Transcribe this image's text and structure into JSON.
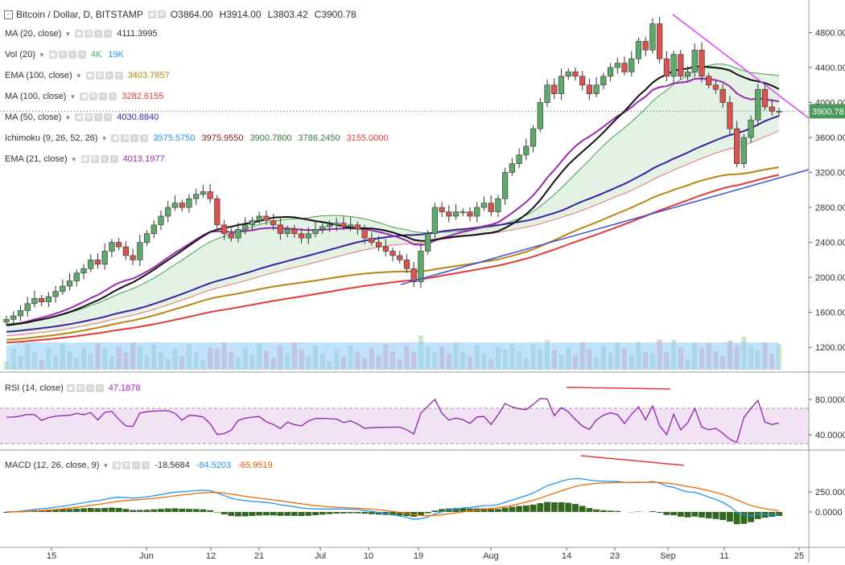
{
  "header": {
    "symbol": "Bitcoin / Dollar, D, BITSTAMP",
    "open": "O3864.00",
    "high": "H3914.00",
    "low": "L3803.42",
    "close": "C3900.78"
  },
  "indicators": [
    {
      "name": "MA (20, close)",
      "values": [
        {
          "v": "4111.3995",
          "color": "#333333"
        }
      ]
    },
    {
      "name": "Vol (20)",
      "values": [
        {
          "v": "4K",
          "color": "#4caf50"
        },
        {
          "v": "19K",
          "color": "#2196f3"
        }
      ]
    },
    {
      "name": "EMA (100, close)",
      "values": [
        {
          "v": "3403.7857",
          "color": "#b8860b"
        }
      ]
    },
    {
      "name": "MA (100, close)",
      "values": [
        {
          "v": "3282.6155",
          "color": "#e53935"
        }
      ]
    },
    {
      "name": "MA (50, close)",
      "values": [
        {
          "v": "4030.8840",
          "color": "#3f1f9f"
        }
      ]
    },
    {
      "name": "Ichimoku (9, 26, 52, 26)",
      "values": [
        {
          "v": "3575.5750",
          "color": "#2196f3"
        },
        {
          "v": "3975.9550",
          "color": "#8b1a1a"
        },
        {
          "v": "3900.7800",
          "color": "#2e7d32"
        },
        {
          "v": "3786.2450",
          "color": "#2e7d32"
        },
        {
          "v": "3155.0000",
          "color": "#e53935"
        }
      ]
    },
    {
      "name": "EMA (21, close)",
      "values": [
        {
          "v": "4013.1977",
          "color": "#9c27b0"
        }
      ]
    }
  ],
  "rsi": {
    "name": "RSI (14, close)",
    "value": "47.1878"
  },
  "macd": {
    "name": "MACD (12, 26, close, 9)",
    "values": [
      {
        "v": "-18.5684",
        "color": "#333333"
      },
      {
        "v": "-84.5203",
        "color": "#2196f3"
      },
      {
        "v": "-65.9519",
        "color": "#e65100"
      }
    ]
  },
  "chart_data": {
    "type": "candlestick",
    "price_axis_ticks": [
      "4800.00",
      "4400.00",
      "4000.00",
      "3600.00",
      "3200.00",
      "2800.00",
      "2400.00",
      "2000.00",
      "1600.00",
      "1200.00"
    ],
    "last_price_label": "3900.78",
    "rsi_axis_ticks": [
      "80.0000",
      "40.0000"
    ],
    "macd_axis_ticks": [
      "250.0000",
      "0.0000"
    ],
    "x_tick_labels": [
      "15",
      "Jun",
      "12",
      "21",
      "Jul",
      "10",
      "19",
      "Aug",
      "14",
      "23",
      "Sep",
      "11",
      "25"
    ],
    "closes": [
      1520,
      1560,
      1620,
      1700,
      1760,
      1720,
      1780,
      1840,
      1900,
      1960,
      2050,
      2100,
      2200,
      2150,
      2300,
      2400,
      2350,
      2250,
      2200,
      2400,
      2500,
      2600,
      2700,
      2800,
      2850,
      2800,
      2900,
      2950,
      2980,
      2900,
      2600,
      2500,
      2450,
      2550,
      2600,
      2650,
      2700,
      2650,
      2600,
      2500,
      2550,
      2500,
      2450,
      2500,
      2550,
      2580,
      2600,
      2620,
      2580,
      2600,
      2550,
      2450,
      2400,
      2350,
      2300,
      2250,
      2200,
      2100,
      1950,
      2300,
      2500,
      2800,
      2750,
      2700,
      2750,
      2750,
      2700,
      2800,
      2850,
      2750,
      2900,
      3200,
      3300,
      3400,
      3500,
      3700,
      4000,
      4200,
      4100,
      4300,
      4350,
      4300,
      4200,
      4100,
      4200,
      4300,
      4400,
      4450,
      4350,
      4500,
      4700,
      4600,
      4900,
      4500,
      4300,
      4550,
      4300,
      4350,
      4600,
      4300,
      4200,
      4150,
      4000,
      3700,
      3300,
      3600,
      3800,
      4150,
      3950,
      3900,
      3900
    ]
  }
}
